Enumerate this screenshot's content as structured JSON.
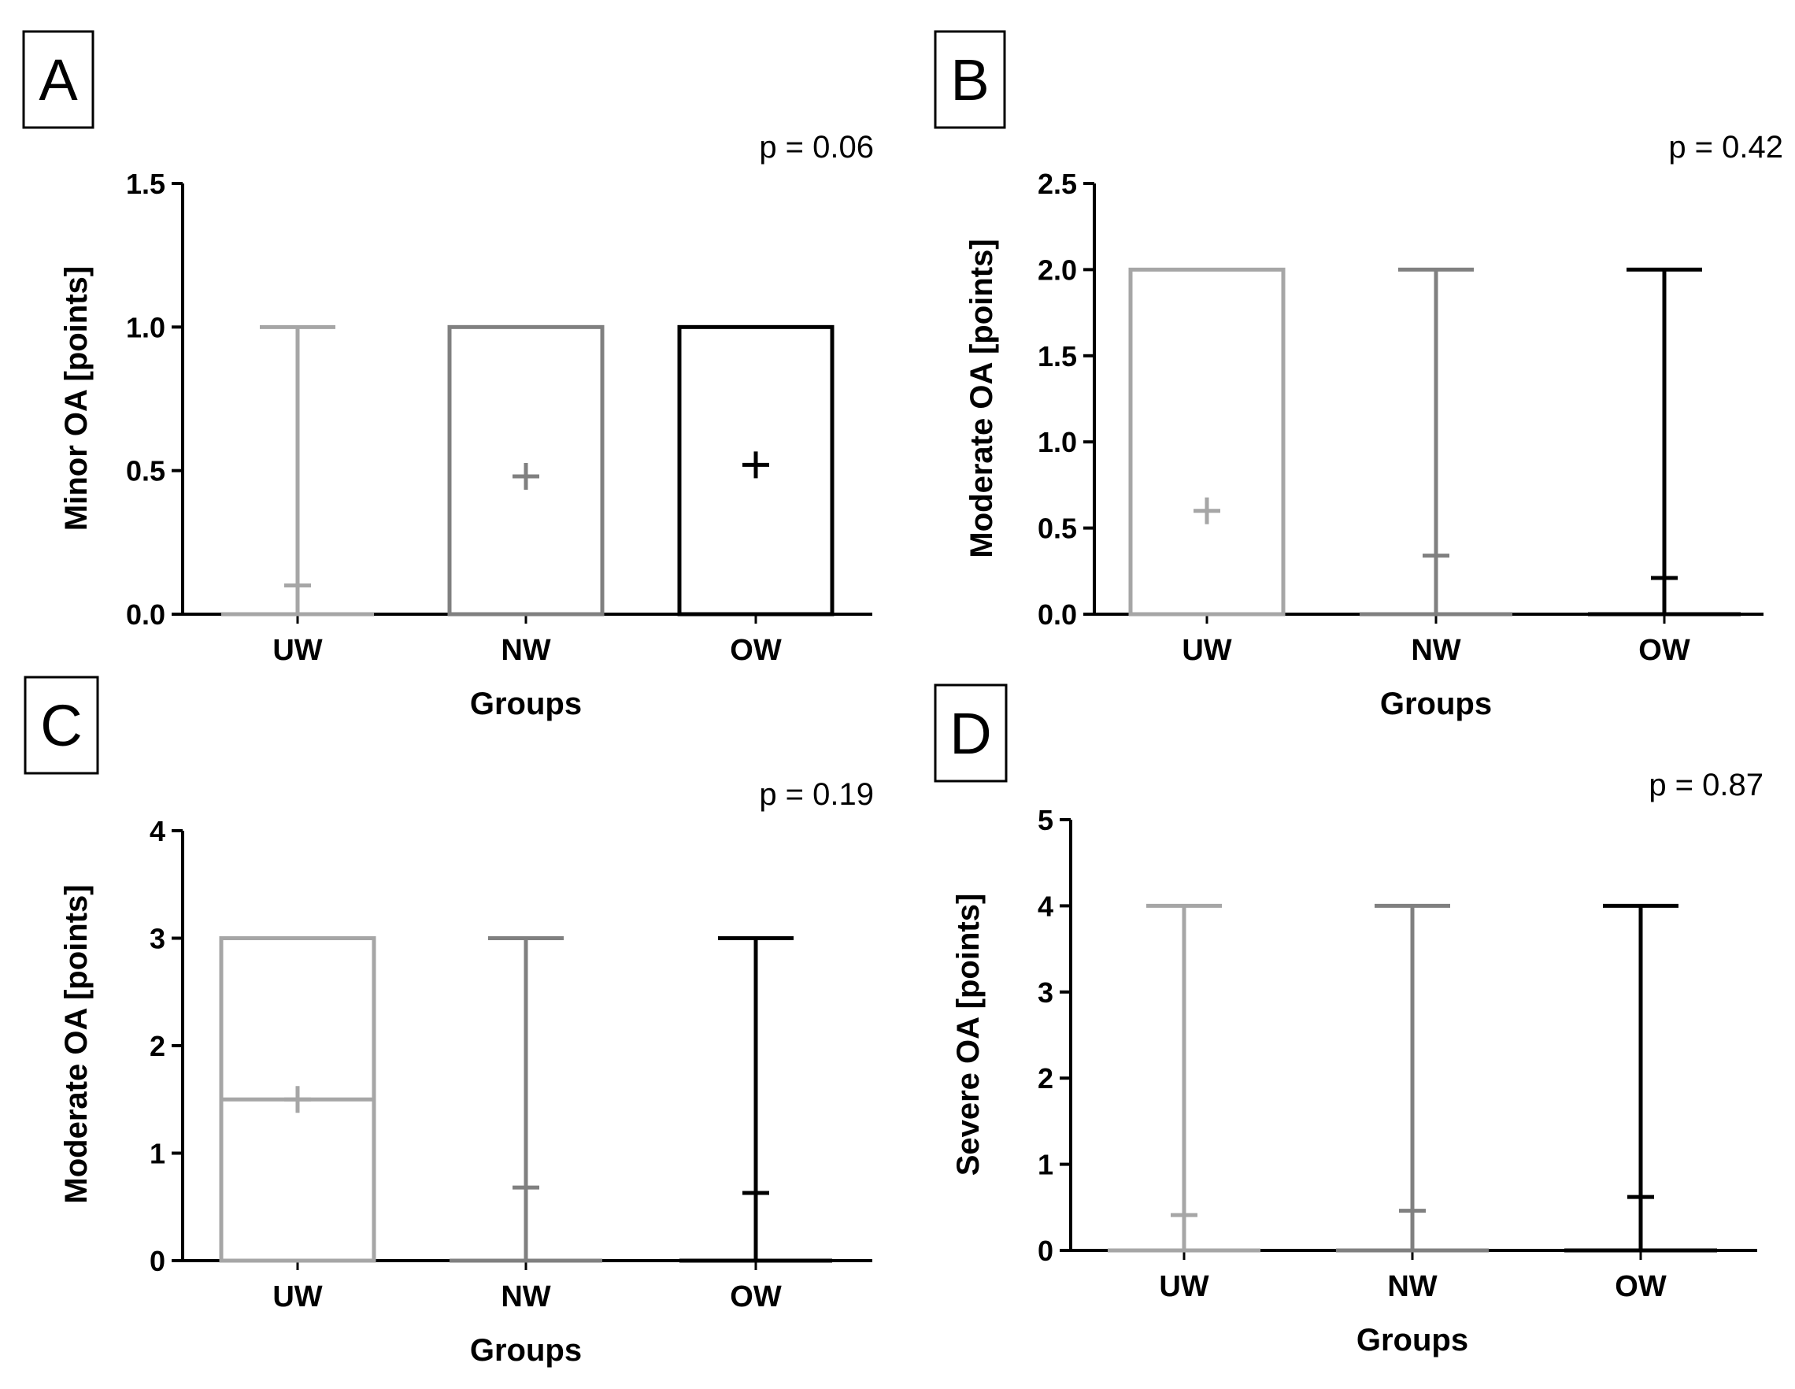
{
  "figure": {
    "panel_count": 4
  },
  "chart_data": [
    {
      "panel": "A",
      "type": "boxplot",
      "p_value": "p = 0.06",
      "xlabel": "Groups",
      "ylabel": "Minor OA [points]",
      "ylim": [
        0,
        1.5
      ],
      "yticks": [
        "0.0",
        "0.5",
        "1.0",
        "1.5"
      ],
      "ytick_values": [
        0,
        0.5,
        1.0,
        1.5
      ],
      "categories": [
        "UW",
        "NW",
        "OW"
      ],
      "colors": [
        "#a6a6a6",
        "#808080",
        "#000000"
      ],
      "groups": [
        {
          "name": "UW",
          "min": 0,
          "q1": 0,
          "median": 0,
          "q3": 0,
          "max": 1,
          "mean": 0.1
        },
        {
          "name": "NW",
          "min": 0,
          "q1": 0,
          "median": 0,
          "q3": 1,
          "max": 1,
          "mean": 0.48
        },
        {
          "name": "OW",
          "min": 0,
          "q1": 0,
          "median": 0,
          "q3": 1,
          "max": 1,
          "mean": 0.52
        }
      ]
    },
    {
      "panel": "B",
      "type": "boxplot",
      "p_value": "p = 0.42",
      "xlabel": "Groups",
      "ylabel": "Moderate OA [points]",
      "ylim": [
        0,
        2.5
      ],
      "yticks": [
        "0.0",
        "0.5",
        "1.0",
        "1.5",
        "2.0",
        "2.5"
      ],
      "ytick_values": [
        0,
        0.5,
        1.0,
        1.5,
        2.0,
        2.5
      ],
      "categories": [
        "UW",
        "NW",
        "OW"
      ],
      "colors": [
        "#a6a6a6",
        "#808080",
        "#000000"
      ],
      "groups": [
        {
          "name": "UW",
          "min": 0,
          "q1": 0,
          "median": 0,
          "q3": 2,
          "max": 2,
          "mean": 0.6
        },
        {
          "name": "NW",
          "min": 0,
          "q1": 0,
          "median": 0,
          "q3": 0,
          "max": 2,
          "mean": 0.34
        },
        {
          "name": "OW",
          "min": 0,
          "q1": 0,
          "median": 0,
          "q3": 0,
          "max": 2,
          "mean": 0.21
        }
      ]
    },
    {
      "panel": "C",
      "type": "boxplot",
      "p_value": "p = 0.19",
      "xlabel": "Groups",
      "ylabel": "Moderate OA [points]",
      "ylim": [
        0,
        4
      ],
      "yticks": [
        "0",
        "1",
        "2",
        "3",
        "4"
      ],
      "ytick_values": [
        0,
        1,
        2,
        3,
        4
      ],
      "categories": [
        "UW",
        "NW",
        "OW"
      ],
      "colors": [
        "#a6a6a6",
        "#808080",
        "#000000"
      ],
      "groups": [
        {
          "name": "UW",
          "min": 0,
          "q1": 0,
          "median": 1.5,
          "q3": 3,
          "max": 3,
          "mean": 1.5
        },
        {
          "name": "NW",
          "min": 0,
          "q1": 0,
          "median": 0,
          "q3": 0,
          "max": 3,
          "mean": 0.68
        },
        {
          "name": "OW",
          "min": 0,
          "q1": 0,
          "median": 0,
          "q3": 0,
          "max": 3,
          "mean": 0.63
        }
      ]
    },
    {
      "panel": "D",
      "type": "boxplot",
      "p_value": "p = 0.87",
      "xlabel": "Groups",
      "ylabel": "Severe OA [points]",
      "ylim": [
        0,
        5
      ],
      "yticks": [
        "0",
        "1",
        "2",
        "3",
        "4",
        "5"
      ],
      "ytick_values": [
        0,
        1,
        2,
        3,
        4,
        5
      ],
      "categories": [
        "UW",
        "NW",
        "OW"
      ],
      "colors": [
        "#a6a6a6",
        "#808080",
        "#000000"
      ],
      "groups": [
        {
          "name": "UW",
          "min": 0,
          "q1": 0,
          "median": 0,
          "q3": 0,
          "max": 4,
          "mean": 0.41
        },
        {
          "name": "NW",
          "min": 0,
          "q1": 0,
          "median": 0,
          "q3": 0,
          "max": 4,
          "mean": 0.46
        },
        {
          "name": "OW",
          "min": 0,
          "q1": 0,
          "median": 0,
          "q3": 0,
          "max": 4,
          "mean": 0.62
        }
      ]
    }
  ]
}
